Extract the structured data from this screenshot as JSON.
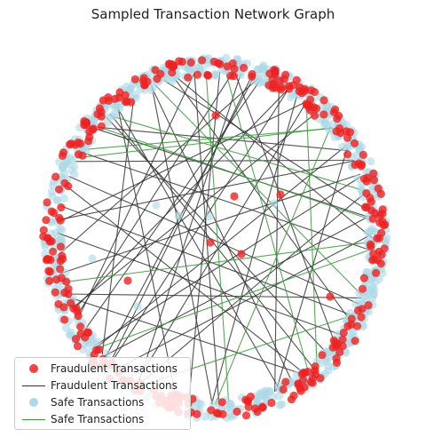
{
  "chart_data": {
    "type": "network",
    "title": "Sampled Transaction Network Graph",
    "layout": "circular",
    "legend_position": "lower-left",
    "legend": [
      {
        "label": "Fraudulent Transactions",
        "kind": "node",
        "color": "#ee2222"
      },
      {
        "label": "Fraudulent Transactions",
        "kind": "edge",
        "color": "#333333"
      },
      {
        "label": "Safe Transactions",
        "kind": "node",
        "color": "#add8e6"
      },
      {
        "label": "Safe Transactions",
        "kind": "edge",
        "color": "#3a9a3a"
      }
    ],
    "series": [
      {
        "name": "Fraudulent Transactions",
        "kind": "node",
        "color": "#ee2222",
        "alpha": 0.8,
        "count": 320
      },
      {
        "name": "Safe Transactions",
        "kind": "node",
        "color": "#add8e6",
        "alpha": 0.6,
        "count": 680
      },
      {
        "name": "Fraudulent Transactions",
        "kind": "edge",
        "color": "#333333",
        "count": 45
      },
      {
        "name": "Safe Transactions",
        "kind": "edge",
        "color": "#3a9a3a",
        "count": 12
      }
    ]
  }
}
